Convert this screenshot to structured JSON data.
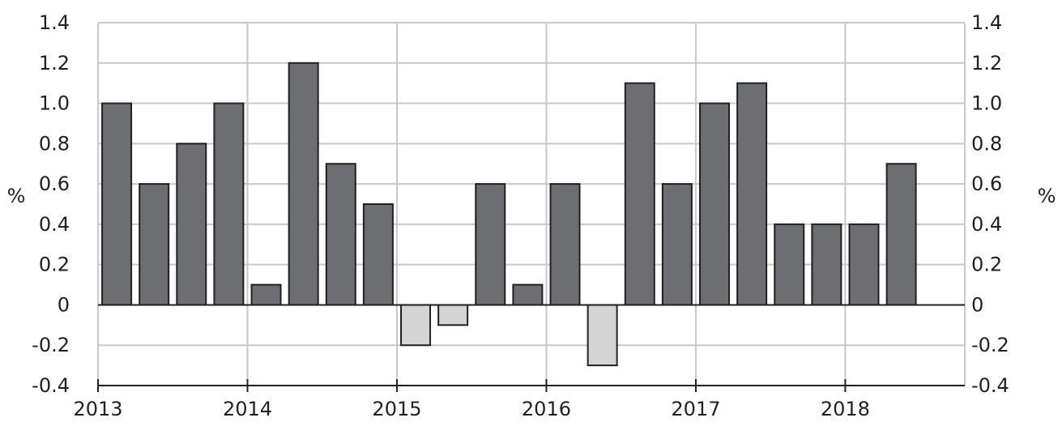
{
  "chart_data": {
    "type": "bar",
    "title": "",
    "xlabel": "",
    "ylabel_left": "%",
    "ylabel_right": "%",
    "ylim": [
      -0.4,
      1.4
    ],
    "y_ticks": [
      "1.4",
      "1.2",
      "1.0",
      "0.8",
      "0.6",
      "0.4",
      "0.2",
      "0",
      "-0.2",
      "-0.4"
    ],
    "x_ticks": [
      "2013",
      "2014",
      "2015",
      "2016",
      "2017",
      "2018"
    ],
    "grid": true,
    "frequency": "quarterly",
    "colors": {
      "positive": "#6d6e71",
      "negative": "#d4d4d4",
      "axis": "#231f20",
      "grid": "#c8c8c8"
    },
    "series": [
      {
        "x": [
          "2013 Q1",
          "2013 Q2",
          "2013 Q3",
          "2013 Q4",
          "2014 Q1",
          "2014 Q2",
          "2014 Q3",
          "2014 Q4",
          "2015 Q1",
          "2015 Q2",
          "2015 Q3",
          "2015 Q4",
          "2016 Q1",
          "2016 Q2",
          "2016 Q3",
          "2016 Q4",
          "2017 Q1",
          "2017 Q2",
          "2017 Q3",
          "2017 Q4",
          "2018 Q1",
          "2018 Q2"
        ],
        "values": [
          1.0,
          0.6,
          0.8,
          1.0,
          0.1,
          1.2,
          0.7,
          0.5,
          -0.2,
          -0.1,
          0.6,
          0.1,
          0.6,
          -0.3,
          1.1,
          0.6,
          1.0,
          1.1,
          0.4,
          0.4,
          0.4,
          0.7
        ]
      }
    ]
  }
}
